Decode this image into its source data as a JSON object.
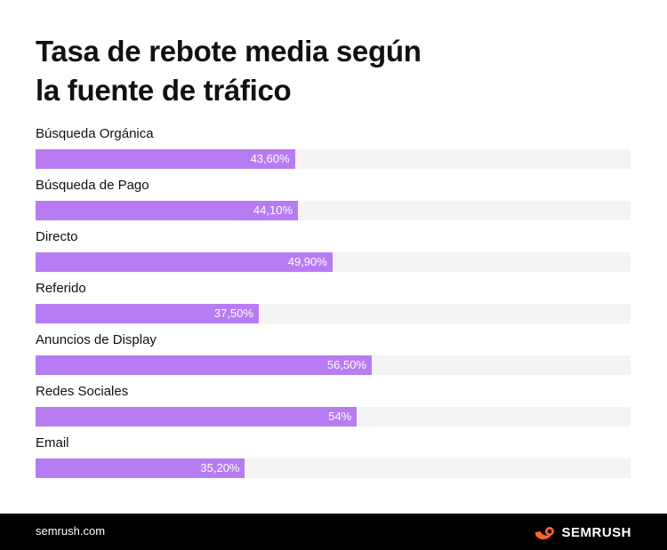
{
  "title_lines": [
    "Tasa de rebote media según",
    "la fuente de tráfico"
  ],
  "colors": {
    "bar": "#b77cf2",
    "track": "#f4f4f4",
    "logo_accent": "#ff642d"
  },
  "chart_data": {
    "type": "bar",
    "orientation": "horizontal",
    "title": "Tasa de rebote media según la fuente de tráfico",
    "categories": [
      "Búsqueda Orgánica",
      "Búsqueda de Pago",
      "Directo",
      "Referido",
      "Anuncios de Display",
      "Redes Sociales",
      "Email"
    ],
    "values": [
      43.6,
      44.1,
      49.9,
      37.5,
      56.5,
      54,
      35.2
    ],
    "value_labels": [
      "43,60%",
      "44,10%",
      "49,90%",
      "37,50%",
      "56,50%",
      "54%",
      "35,20%"
    ],
    "xlim": [
      0,
      100
    ],
    "unit": "%"
  },
  "footer": {
    "url": "semrush.com",
    "logo_text": "SEMRUSH",
    "logo_icon": "semrush-fire-icon"
  }
}
